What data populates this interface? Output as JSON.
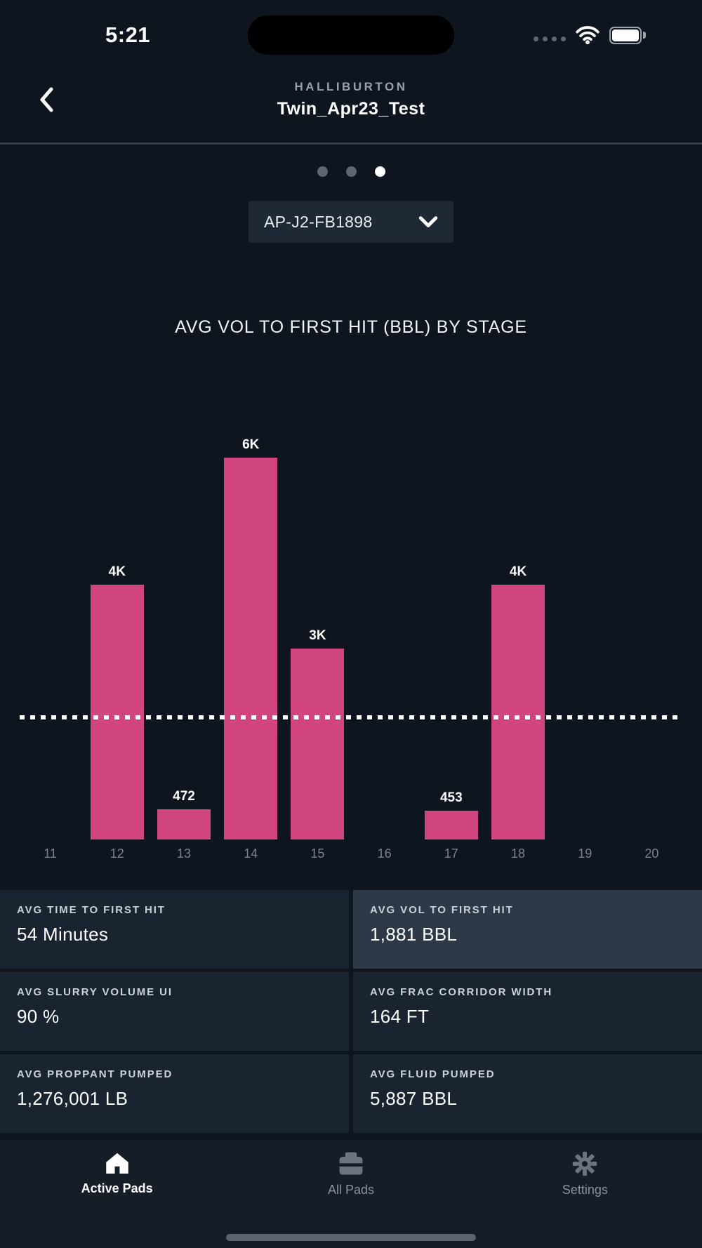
{
  "status_bar": {
    "time": "5:21"
  },
  "header": {
    "company": "HALLIBURTON",
    "title": "Twin_Apr23_Test"
  },
  "pager": {
    "count": 3,
    "active_index": 2
  },
  "well_selector": {
    "value": "AP-J2-FB1898"
  },
  "chart_data": {
    "type": "bar",
    "title": "AVG VOL TO FIRST HIT (BBL) BY STAGE",
    "xlabel": "Stage",
    "ylabel": "Avg Vol to First Hit (BBL)",
    "categories": [
      "11",
      "12",
      "13",
      "14",
      "15",
      "16",
      "17",
      "18",
      "19",
      "20"
    ],
    "values": [
      0,
      4000,
      472,
      6000,
      3000,
      0,
      453,
      4000,
      0,
      0
    ],
    "bar_labels": [
      "",
      "4K",
      "472",
      "6K",
      "3K",
      "",
      "453",
      "4K",
      "",
      ""
    ],
    "average_line": 1881,
    "ylim": [
      0,
      6000
    ],
    "grid": false,
    "bar_color": "#d1457f"
  },
  "stats": [
    {
      "label": "AVG TIME TO FIRST HIT",
      "value": "54 Minutes",
      "highlighted": false
    },
    {
      "label": "AVG VOL TO FIRST HIT",
      "value": "1,881 BBL",
      "highlighted": true
    },
    {
      "label": "AVG SLURRY VOLUME UI",
      "value": "90 %",
      "highlighted": false
    },
    {
      "label": "AVG FRAC CORRIDOR WIDTH",
      "value": "164 FT",
      "highlighted": false
    },
    {
      "label": "AVG PROPPANT PUMPED",
      "value": "1,276,001 LB",
      "highlighted": false
    },
    {
      "label": "AVG FLUID PUMPED",
      "value": "5,887 BBL",
      "highlighted": false
    }
  ],
  "tab_bar": {
    "items": [
      {
        "label": "Active Pads",
        "icon": "home-icon",
        "active": true
      },
      {
        "label": "All Pads",
        "icon": "pads-icon",
        "active": false
      },
      {
        "label": "Settings",
        "icon": "gear-icon",
        "active": false
      }
    ]
  }
}
